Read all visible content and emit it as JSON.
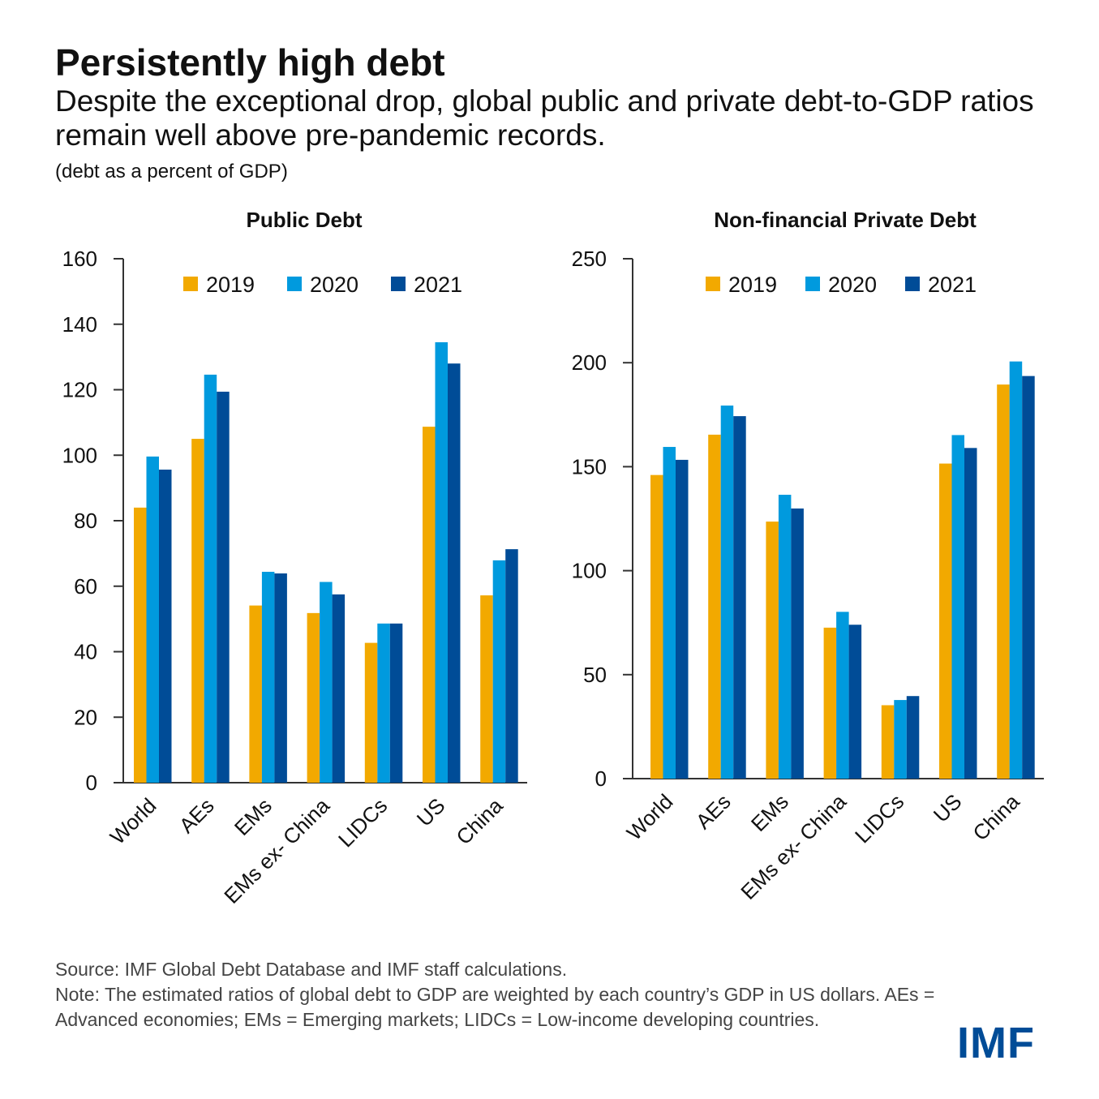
{
  "title": "Persistently high debt",
  "subtitle": "Despite the exceptional drop, global public and private debt-to-GDP ratios remain well above pre-pandemic records.",
  "units": "(debt as a percent of GDP)",
  "source": "Source: IMF Global Debt Database and IMF staff calculations.",
  "note": "Note: The estimated ratios of global debt to GDP are weighted by each country’s GDP in US dollars. AEs = Advanced economies; EMs = Emerging markets; LIDCs = Low-income developing countries.",
  "logo": "IMF",
  "colors": {
    "2019": "#F2A900",
    "2020": "#009ADE",
    "2021": "#004C97"
  },
  "chart_data": [
    {
      "type": "bar",
      "title": "Public Debt",
      "categories": [
        "World",
        "AEs",
        "EMs",
        "EMs ex- China",
        "LIDCs",
        "US",
        "China"
      ],
      "series": [
        {
          "name": "2019",
          "values": [
            84.0,
            105.0,
            54.1,
            51.8,
            42.7,
            108.7,
            57.2
          ]
        },
        {
          "name": "2020",
          "values": [
            99.6,
            124.6,
            64.4,
            61.3,
            48.6,
            134.5,
            67.9
          ]
        },
        {
          "name": "2021",
          "values": [
            95.6,
            119.4,
            63.9,
            57.5,
            48.6,
            128.0,
            71.3
          ]
        }
      ],
      "ylim": [
        0,
        160
      ],
      "yticks": [
        0,
        20,
        40,
        60,
        80,
        100,
        120,
        140,
        160
      ],
      "legend": "top",
      "grid": false
    },
    {
      "type": "bar",
      "title": "Non-financial Private Debt",
      "categories": [
        "World",
        "AEs",
        "EMs",
        "EMs ex- China",
        "LIDCs",
        "US",
        "China"
      ],
      "series": [
        {
          "name": "2019",
          "values": [
            146.0,
            165.4,
            123.6,
            72.6,
            35.3,
            151.5,
            189.5
          ]
        },
        {
          "name": "2020",
          "values": [
            159.5,
            179.4,
            136.5,
            80.2,
            37.8,
            165.2,
            200.6
          ]
        },
        {
          "name": "2021",
          "values": [
            153.3,
            174.3,
            129.9,
            74.0,
            39.7,
            159.0,
            193.6
          ]
        }
      ],
      "ylim": [
        0,
        250
      ],
      "yticks": [
        0,
        50,
        100,
        150,
        200,
        250
      ],
      "legend": "top",
      "grid": false
    }
  ]
}
